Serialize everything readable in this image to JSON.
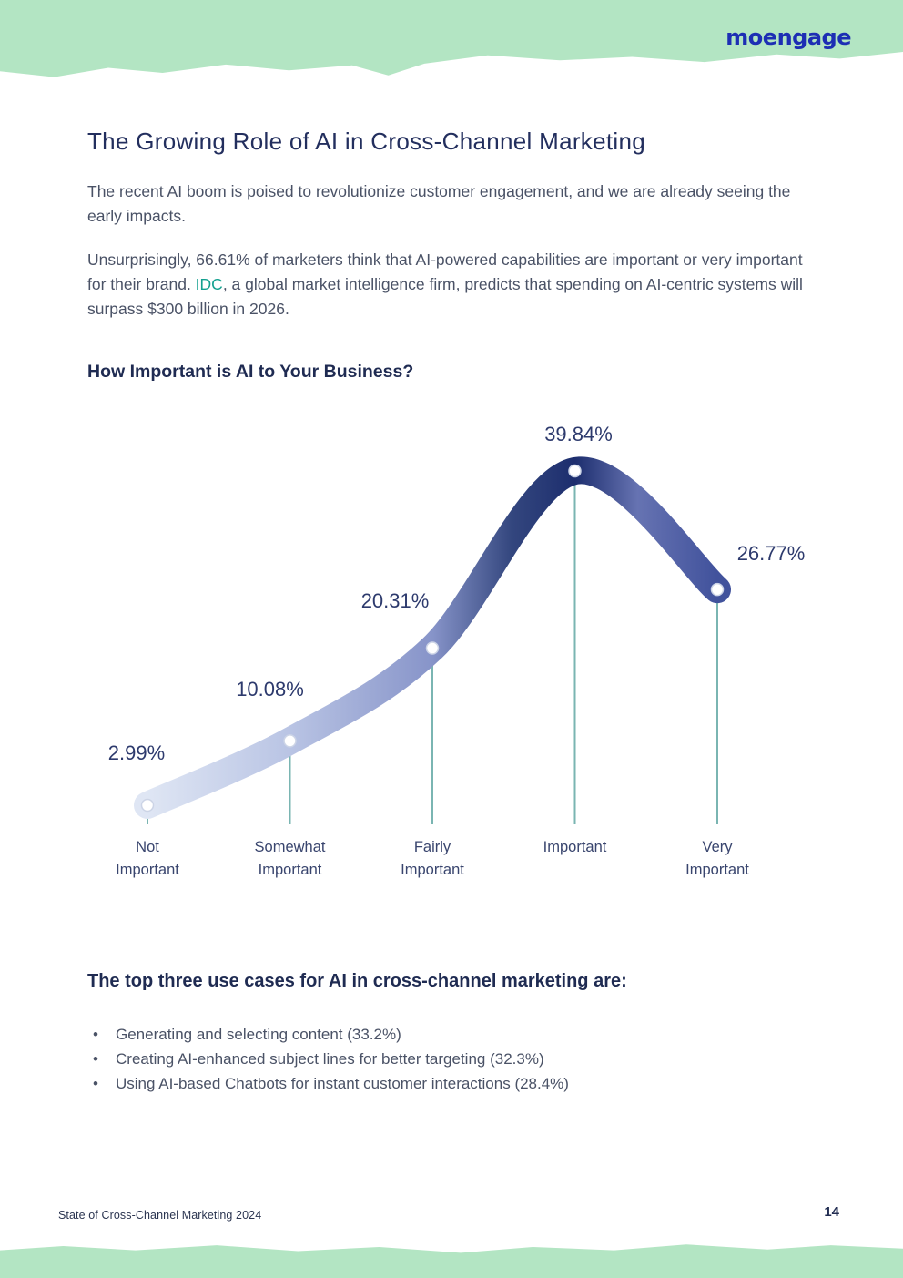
{
  "brand": {
    "logo_text": "moengage"
  },
  "article": {
    "title": "The Growing Role of AI in Cross-Channel Marketing",
    "paragraph1": "The recent AI boom is poised to revolutionize customer engagement, and we are already seeing the early impacts.",
    "paragraph2_before_link": "Unsurprisingly, 66.61% of marketers think that AI-powered capabilities are important or very important for their brand. ",
    "paragraph2_link": "IDC",
    "paragraph2_after_link": ", a global market intelligence firm, predicts that spending on AI-centric systems will surpass $300 billion in 2026.",
    "use_cases_heading": "The top three use cases for AI in cross-channel marketing are:",
    "use_cases": [
      "Generating and selecting content (33.2%)",
      "Creating AI-enhanced subject lines for better targeting (32.3%)",
      "Using AI-based Chatbots for instant customer interactions (28.4%)"
    ]
  },
  "footer": {
    "left_text": "State of Cross-Channel Marketing 2024",
    "page_number": "14"
  },
  "chart_data": {
    "type": "line",
    "title": "How Important is AI to Your Business?",
    "categories": [
      "Not Important",
      "Somewhat Important",
      "Fairly Important",
      "Important",
      "Very Important"
    ],
    "values": [
      2.99,
      10.08,
      20.31,
      39.84,
      26.77
    ],
    "value_labels": [
      "2.99%",
      "10.08%",
      "20.31%",
      "39.84%",
      "26.77%"
    ],
    "unit": "%",
    "ylim": [
      0,
      45
    ],
    "grid": false,
    "legend": "none",
    "style": "smooth thick ribbon curve, gradient light-lavender to dark-navy peaking at 'Important', white point markers, teal vertical drop lines to category labels"
  },
  "colors": {
    "band_green": "#b3e5c3",
    "logo_blue": "#1d2eb4",
    "heading_navy": "#232f5e",
    "body_gray": "#4a5266",
    "link_teal": "#13a08f",
    "value_label_navy": "#2d3a6d",
    "drop_line_teal": "#7ab5b2",
    "marker_fill": "#ffffff",
    "marker_stroke": "#ccd4e6",
    "ribbon_gradient": [
      "#dfe6f4",
      "#b9c4e4",
      "#8794c9",
      "#33467e",
      "#1d2e6e",
      "#6673b2",
      "#41529c"
    ]
  }
}
